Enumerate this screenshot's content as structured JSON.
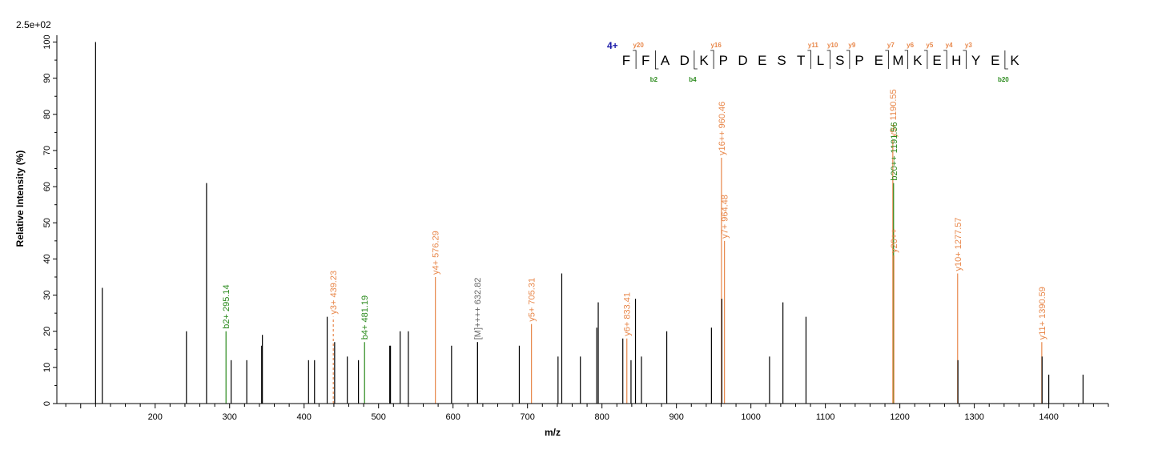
{
  "colors": {
    "b_ion": "#2a8a1c",
    "y_ion": "#e8874a",
    "precursor": "#666666",
    "other": "#000000",
    "charge": "#1a1aa8"
  },
  "chart_data": {
    "type": "bar",
    "scale_label": "2.5e+02",
    "xlabel": "m/z",
    "ylabel": "Relative  Intensity (%)",
    "xlim": [
      68,
      1480
    ],
    "ylim": [
      0,
      101
    ],
    "x_ticks": [
      200,
      300,
      400,
      500,
      600,
      700,
      800,
      900,
      1000,
      1100,
      1200,
      1300,
      1400
    ],
    "y_ticks": [
      0,
      10,
      20,
      30,
      40,
      50,
      60,
      70,
      80,
      90,
      100
    ],
    "peaks": [
      {
        "mz": 120,
        "intensity": 100,
        "type": "other"
      },
      {
        "mz": 129,
        "intensity": 32,
        "type": "other"
      },
      {
        "mz": 242,
        "intensity": 20,
        "type": "other"
      },
      {
        "mz": 269,
        "intensity": 61,
        "type": "other"
      },
      {
        "mz": 295.14,
        "intensity": 20,
        "type": "b",
        "label": "b2+ 295.14"
      },
      {
        "mz": 302,
        "intensity": 12,
        "type": "other"
      },
      {
        "mz": 323,
        "intensity": 12,
        "type": "other"
      },
      {
        "mz": 343,
        "intensity": 16,
        "type": "other"
      },
      {
        "mz": 344,
        "intensity": 19,
        "type": "other"
      },
      {
        "mz": 406,
        "intensity": 12,
        "type": "other"
      },
      {
        "mz": 414,
        "intensity": 12,
        "type": "other"
      },
      {
        "mz": 431,
        "intensity": 24,
        "type": "other"
      },
      {
        "mz": 439.23,
        "intensity": 24,
        "type": "y",
        "label": "y3+ 439.23",
        "dashed": true
      },
      {
        "mz": 441,
        "intensity": 17,
        "type": "other"
      },
      {
        "mz": 458,
        "intensity": 13,
        "type": "other"
      },
      {
        "mz": 473,
        "intensity": 12,
        "type": "other"
      },
      {
        "mz": 481.19,
        "intensity": 17,
        "type": "b",
        "label": "b4+ 481.19"
      },
      {
        "mz": 515,
        "intensity": 16,
        "type": "other"
      },
      {
        "mz": 516,
        "intensity": 16,
        "type": "other"
      },
      {
        "mz": 529,
        "intensity": 20,
        "type": "other"
      },
      {
        "mz": 540,
        "intensity": 20,
        "type": "other"
      },
      {
        "mz": 576.29,
        "intensity": 35,
        "type": "y",
        "label": "y4+ 576.29"
      },
      {
        "mz": 598,
        "intensity": 16,
        "type": "other"
      },
      {
        "mz": 632.82,
        "intensity": 17,
        "type": "precursor",
        "label": "[M]++++ 632.82"
      },
      {
        "mz": 633,
        "intensity": 17,
        "type": "other"
      },
      {
        "mz": 689,
        "intensity": 16,
        "type": "other"
      },
      {
        "mz": 705.31,
        "intensity": 22,
        "type": "y",
        "label": "y5+ 705.31"
      },
      {
        "mz": 741,
        "intensity": 13,
        "type": "other"
      },
      {
        "mz": 746,
        "intensity": 36,
        "type": "other"
      },
      {
        "mz": 771,
        "intensity": 13,
        "type": "other"
      },
      {
        "mz": 793,
        "intensity": 21,
        "type": "other"
      },
      {
        "mz": 795,
        "intensity": 28,
        "type": "other"
      },
      {
        "mz": 828,
        "intensity": 18,
        "type": "other"
      },
      {
        "mz": 833.41,
        "intensity": 18,
        "type": "y",
        "label": "y6+ 833.41"
      },
      {
        "mz": 839,
        "intensity": 12,
        "type": "other"
      },
      {
        "mz": 845,
        "intensity": 29,
        "type": "other"
      },
      {
        "mz": 853,
        "intensity": 13,
        "type": "other"
      },
      {
        "mz": 887,
        "intensity": 20,
        "type": "other"
      },
      {
        "mz": 947,
        "intensity": 21,
        "type": "other"
      },
      {
        "mz": 960.46,
        "intensity": 68,
        "type": "y",
        "label": "y16++ 960.46"
      },
      {
        "mz": 961,
        "intensity": 29,
        "type": "other"
      },
      {
        "mz": 964.48,
        "intensity": 45,
        "type": "y",
        "label": "y7+ 964.48"
      },
      {
        "mz": 1025,
        "intensity": 13,
        "type": "other"
      },
      {
        "mz": 1043,
        "intensity": 28,
        "type": "other"
      },
      {
        "mz": 1074,
        "intensity": 24,
        "type": "other"
      },
      {
        "mz": 1190.55,
        "intensity": 73,
        "type": "y",
        "label": "y9+ 1190.55"
      },
      {
        "mz": 1191.56,
        "intensity": 61,
        "type": "b",
        "label": "b20++ 1191.56"
      },
      {
        "mz": 1192,
        "intensity": 41,
        "type": "y",
        "label": "y20++"
      },
      {
        "mz": 1277.57,
        "intensity": 36,
        "type": "y",
        "label": "y10+ 1277.57"
      },
      {
        "mz": 1278,
        "intensity": 12,
        "type": "other"
      },
      {
        "mz": 1390.59,
        "intensity": 17,
        "type": "y",
        "label": "y11+ 1390.59"
      },
      {
        "mz": 1391,
        "intensity": 13,
        "type": "other"
      },
      {
        "mz": 1400,
        "intensity": 8,
        "type": "other"
      },
      {
        "mz": 1446,
        "intensity": 8,
        "type": "other"
      }
    ]
  },
  "sequence": {
    "charge": "4+",
    "letters": [
      "F",
      "F",
      "A",
      "D",
      "K",
      "P",
      "D",
      "E",
      "S",
      "T",
      "L",
      "S",
      "P",
      "E",
      "M",
      "K",
      "E",
      "H",
      "Y",
      "E",
      "K"
    ],
    "y_marks": [
      {
        "after": 1,
        "label": "y20"
      },
      {
        "after": 5,
        "label": "y16"
      },
      {
        "after": 10,
        "label": "y11"
      },
      {
        "after": 11,
        "label": "y10"
      },
      {
        "after": 12,
        "label": "y9"
      },
      {
        "after": 14,
        "label": "y7"
      },
      {
        "after": 15,
        "label": "y6"
      },
      {
        "after": 16,
        "label": "y5"
      },
      {
        "after": 17,
        "label": "y4"
      },
      {
        "after": 18,
        "label": "y3"
      }
    ],
    "b_marks": [
      {
        "after": 2,
        "label": "b2"
      },
      {
        "after": 4,
        "label": "b4"
      },
      {
        "after": 20,
        "label": "b20"
      }
    ]
  }
}
